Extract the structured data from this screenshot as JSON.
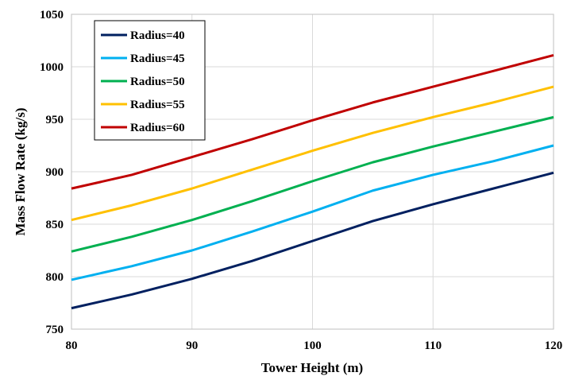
{
  "chart_data": {
    "type": "line",
    "title": "",
    "xlabel": "Tower Height (m)",
    "ylabel": "Mass Flow Rate (kg/s)",
    "xlim": [
      80,
      120
    ],
    "ylim": [
      750,
      1050
    ],
    "xticks": [
      80,
      90,
      100,
      110,
      120
    ],
    "yticks": [
      750,
      800,
      850,
      900,
      950,
      1000,
      1050
    ],
    "grid": true,
    "legend_position": "top-left",
    "x": [
      80,
      85,
      90,
      95,
      100,
      105,
      110,
      115,
      120
    ],
    "series": [
      {
        "name": "Radius=40",
        "color": "#002060",
        "values": [
          770,
          783,
          798,
          815,
          834,
          853,
          869,
          884,
          899
        ]
      },
      {
        "name": "Radius=45",
        "color": "#00B0F0",
        "values": [
          797,
          810,
          825,
          843,
          862,
          882,
          897,
          910,
          925
        ]
      },
      {
        "name": "Radius=50",
        "color": "#00B050",
        "values": [
          824,
          838,
          854,
          872,
          891,
          909,
          924,
          938,
          952
        ]
      },
      {
        "name": "Radius=55",
        "color": "#FFC000",
        "values": [
          854,
          868,
          884,
          902,
          920,
          937,
          952,
          966,
          981
        ]
      },
      {
        "name": "Radius=60",
        "color": "#C00000",
        "values": [
          884,
          897,
          914,
          931,
          949,
          966,
          981,
          996,
          1011
        ]
      }
    ]
  }
}
